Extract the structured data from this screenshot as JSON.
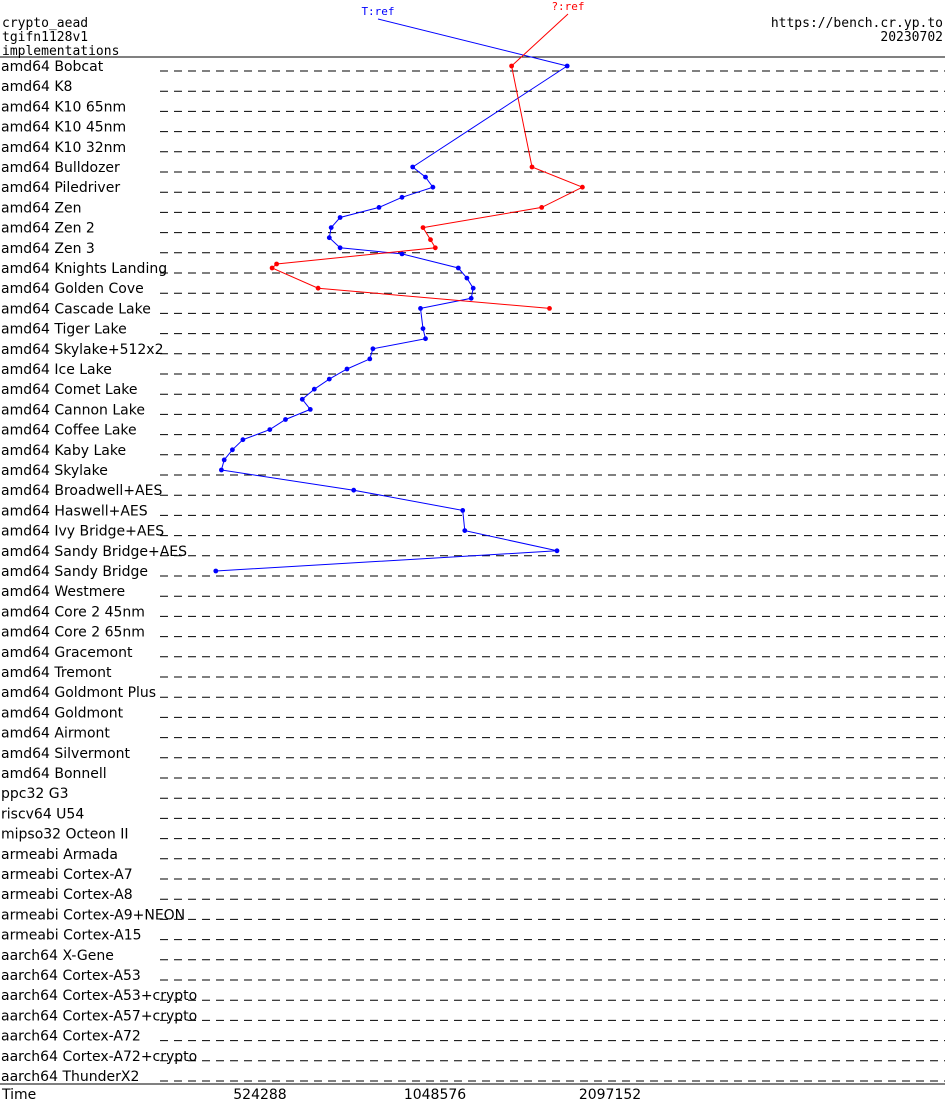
{
  "header": {
    "line1": "crypto_aead",
    "line2": "tgifn1128v1",
    "line3": "implementations",
    "url": "https://bench.cr.yp.to",
    "date": "20230702"
  },
  "chart_data": {
    "type": "line",
    "xlabel": "Time",
    "xscale": "log2",
    "xticks": [
      {
        "value": 524288,
        "label": "524288"
      },
      {
        "value": 1048576,
        "label": "1048576"
      },
      {
        "value": 2097152,
        "label": "2097152"
      }
    ],
    "xlim": [
      120000,
      2600000
    ],
    "categories": [
      "amd64 Bobcat",
      "amd64 K8",
      "amd64 K10 65nm",
      "amd64 K10 45nm",
      "amd64 K10 32nm",
      "amd64 Bulldozer",
      "amd64 Piledriver",
      "amd64 Zen",
      "amd64 Zen 2",
      "amd64 Zen 3",
      "amd64 Knights Landing",
      "amd64 Golden Cove",
      "amd64 Cascade Lake",
      "amd64 Tiger Lake",
      "amd64 Skylake+512x2",
      "amd64 Ice Lake",
      "amd64 Comet Lake",
      "amd64 Cannon Lake",
      "amd64 Coffee Lake",
      "amd64 Kaby Lake",
      "amd64 Skylake",
      "amd64 Broadwell+AES",
      "amd64 Haswell+AES",
      "amd64 Ivy Bridge+AES",
      "amd64 Sandy Bridge+AES",
      "amd64 Sandy Bridge",
      "amd64 Westmere",
      "amd64 Core 2 45nm",
      "amd64 Core 2 65nm",
      "amd64 Gracemont",
      "amd64 Tremont",
      "amd64 Goldmont Plus",
      "amd64 Goldmont",
      "amd64 Airmont",
      "amd64 Silvermont",
      "amd64 Bonnell",
      "ppc32 G3",
      "riscv64 U54",
      "mipso32 Octeon II",
      "armeabi Armada",
      "armeabi Cortex-A7",
      "armeabi Cortex-A8",
      "armeabi Cortex-A9+NEON",
      "armeabi Cortex-A15",
      "aarch64 X-Gene",
      "aarch64 Cortex-A53",
      "aarch64 Cortex-A53+crypto",
      "aarch64 Cortex-A57+crypto",
      "aarch64 Cortex-A72",
      "aarch64 Cortex-A72+crypto",
      "aarch64 ThunderX2"
    ],
    "series": [
      {
        "name": "T:ref",
        "color": "#0000ff",
        "points": [
          [
            0,
            1770000
          ],
          [
            5,
            960000
          ],
          [
            5.5,
            1010000
          ],
          [
            6,
            1040000
          ],
          [
            6.5,
            920000
          ],
          [
            7,
            840000
          ],
          [
            7.5,
            720000
          ],
          [
            8,
            695000
          ],
          [
            8.5,
            690000
          ],
          [
            9,
            720000
          ],
          [
            9.3,
            920000
          ],
          [
            10,
            1150000
          ],
          [
            10.5,
            1190000
          ],
          [
            11,
            1220000
          ],
          [
            11.5,
            1210000
          ],
          [
            12,
            990000
          ],
          [
            13,
            1000000
          ],
          [
            13.5,
            1010000
          ],
          [
            14,
            820000
          ],
          [
            14.5,
            810000
          ],
          [
            15,
            740000
          ],
          [
            15.5,
            690000
          ],
          [
            16,
            650000
          ],
          [
            16.5,
            620000
          ],
          [
            17,
            640000
          ],
          [
            17.5,
            580000
          ],
          [
            18,
            545000
          ],
          [
            18.5,
            490000
          ],
          [
            19,
            470000
          ],
          [
            19.5,
            455000
          ],
          [
            20,
            450000
          ],
          [
            21,
            760000
          ],
          [
            22,
            1170000
          ],
          [
            23,
            1180000
          ],
          [
            24,
            1700000
          ],
          [
            25,
            440000
          ]
        ]
      },
      {
        "name": "?:ref",
        "color": "#ff0000",
        "points": [
          [
            0,
            1420000
          ],
          [
            5,
            1540000
          ],
          [
            6,
            1880000
          ],
          [
            7,
            1600000
          ],
          [
            8,
            1000000
          ],
          [
            8.6,
            1030000
          ],
          [
            9,
            1050000
          ],
          [
            9.8,
            560000
          ],
          [
            10,
            550000
          ],
          [
            11,
            660000
          ],
          [
            12,
            1650000
          ]
        ]
      }
    ]
  }
}
